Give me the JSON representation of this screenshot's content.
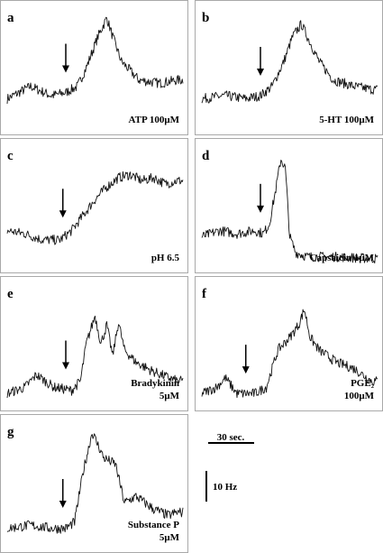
{
  "chart_data": [
    {
      "type": "line",
      "letter": "a",
      "label": [
        "ATP 100μM"
      ],
      "stimulus_time_s": 20,
      "x_unit": "s",
      "y_unit": "Hz",
      "series": [
        {
          "x": [
            0,
            8,
            15,
            20,
            24,
            27,
            31,
            34,
            36,
            39,
            45,
            52,
            58
          ],
          "values": [
            5,
            7,
            5.5,
            6,
            7,
            10,
            15,
            18,
            15,
            11,
            8,
            7.5,
            8
          ]
        }
      ]
    },
    {
      "type": "line",
      "letter": "b",
      "label": [
        "5-HT 100μM"
      ],
      "stimulus_time_s": 20,
      "x_unit": "s",
      "y_unit": "Hz",
      "series": [
        {
          "x": [
            0,
            8,
            15,
            20,
            24,
            28,
            31,
            34,
            37,
            40,
            45,
            52,
            58
          ],
          "values": [
            5,
            5.5,
            5,
            5.5,
            7,
            11,
            15,
            17,
            14,
            11,
            8,
            7,
            6.5
          ]
        }
      ]
    },
    {
      "type": "line",
      "letter": "c",
      "label": [
        "pH 6.5"
      ],
      "stimulus_time_s": 19,
      "x_unit": "s",
      "y_unit": "Hz",
      "series": [
        {
          "x": [
            0,
            6,
            12,
            18,
            22,
            26,
            30,
            34,
            38,
            42,
            46,
            50,
            54,
            58
          ],
          "values": [
            6,
            5.5,
            4.5,
            4.5,
            6,
            8.5,
            11,
            13,
            14.5,
            15,
            14,
            14.5,
            13.5,
            14
          ]
        }
      ]
    },
    {
      "type": "line",
      "letter": "d",
      "label": [
        "Capsaicin 1μM"
      ],
      "stimulus_time_s": 20,
      "x_unit": "s",
      "y_unit": "Hz",
      "series": [
        {
          "x": [
            0,
            6,
            12,
            18,
            21,
            23,
            25,
            27,
            28.5,
            30,
            32,
            36,
            45,
            58
          ],
          "values": [
            5,
            6,
            5.5,
            6,
            5.5,
            7,
            12,
            17.5,
            16,
            5,
            2.5,
            1.8,
            1.8,
            1.5
          ]
        }
      ]
    },
    {
      "type": "line",
      "letter": "e",
      "label": [
        "Bradykinin",
        "5μM"
      ],
      "stimulus_time_s": 20,
      "x_unit": "s",
      "y_unit": "Hz",
      "series": [
        {
          "x": [
            0,
            6,
            10,
            16,
            22,
            25,
            27,
            30,
            32,
            34,
            36,
            38,
            40,
            44,
            50,
            58
          ],
          "values": [
            2,
            3,
            5,
            3,
            2.5,
            4,
            10,
            14.5,
            10,
            13,
            8,
            13.5,
            9,
            7,
            5.5,
            4
          ]
        }
      ]
    },
    {
      "type": "line",
      "letter": "f",
      "label": [
        "PGE₂",
        "100μM"
      ],
      "stimulus_time_s": 15,
      "x_unit": "s",
      "y_unit": "Hz",
      "series": [
        {
          "x": [
            0,
            5,
            8,
            12,
            18,
            22,
            26,
            30,
            33,
            35,
            37,
            40,
            46,
            52,
            58
          ],
          "values": [
            2,
            3,
            4.5,
            2,
            2,
            3,
            9,
            11,
            13,
            15.5,
            11,
            9,
            7,
            6,
            4
          ]
        }
      ]
    },
    {
      "type": "line",
      "letter": "g",
      "label": [
        "Substance P",
        "5μM"
      ],
      "stimulus_time_s": 19,
      "x_unit": "s",
      "y_unit": "Hz",
      "series": [
        {
          "x": [
            0,
            8,
            15,
            20,
            23,
            26,
            29,
            33,
            37,
            40,
            44,
            50,
            55,
            58
          ],
          "values": [
            3,
            3.5,
            3,
            3,
            4,
            12,
            18,
            14,
            13,
            7,
            8,
            6,
            5,
            5.5
          ]
        }
      ]
    }
  ],
  "scale_bar": {
    "time_label": "30 sec.",
    "freq_label": "10 Hz",
    "time_s": 30,
    "freq_hz": 10
  }
}
